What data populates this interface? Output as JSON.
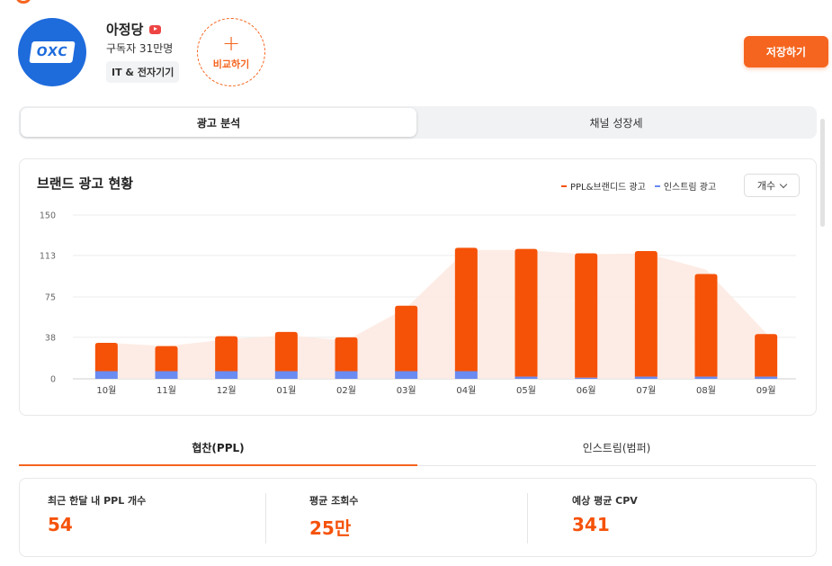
{
  "channel": {
    "avatar_text": "OXC",
    "name": "아정당",
    "platform_icon": "youtube-icon",
    "subscribers": "구독자 31만명",
    "category": "IT & 전자기기"
  },
  "header": {
    "compare_label": "비교하기",
    "compare_icon": "plus-icon",
    "save_label": "저장하기"
  },
  "top_tabs": [
    {
      "label": "광고 분석",
      "active": true
    },
    {
      "label": "채널 성장세",
      "active": false
    }
  ],
  "chart_section": {
    "title": "브랜드 광고 현황",
    "unit_select": "개수"
  },
  "chart_data": {
    "type": "bar",
    "stacked": true,
    "categories": [
      "10월",
      "11월",
      "12월",
      "01월",
      "02월",
      "03월",
      "04월",
      "05월",
      "06월",
      "07월",
      "08월",
      "09월"
    ],
    "series": [
      {
        "name": "PPL&브랜디드 광고",
        "color": "#f55207",
        "values": [
          26,
          23,
          32,
          36,
          31,
          60,
          113,
          117,
          114,
          115,
          94,
          39
        ]
      },
      {
        "name": "인스트림 광고",
        "color": "#6a8bf2",
        "values": [
          7,
          7,
          7,
          7,
          7,
          7,
          7,
          2,
          1,
          2,
          2,
          2
        ]
      }
    ],
    "background_area": {
      "color": "#fdeae2",
      "values": [
        33,
        30,
        36,
        40,
        35,
        65,
        118,
        118,
        114,
        115,
        100,
        42
      ]
    },
    "yticks": [
      0,
      38,
      75,
      113,
      150
    ],
    "ylim": [
      0,
      150
    ],
    "grid": true,
    "legend_position": "top-right"
  },
  "bottom_tabs": [
    {
      "label": "협찬(PPL)",
      "active": true
    },
    {
      "label": "인스트림(범퍼)",
      "active": false
    }
  ],
  "stats": [
    {
      "label": "최근 한달 내 PPL 개수",
      "value": "54"
    },
    {
      "label": "평균 조회수",
      "value": "25만"
    },
    {
      "label": "예상 평균 CPV",
      "value": "341"
    }
  ],
  "colors": {
    "accent": "#f5651f",
    "stat_value": "#f5520a"
  }
}
